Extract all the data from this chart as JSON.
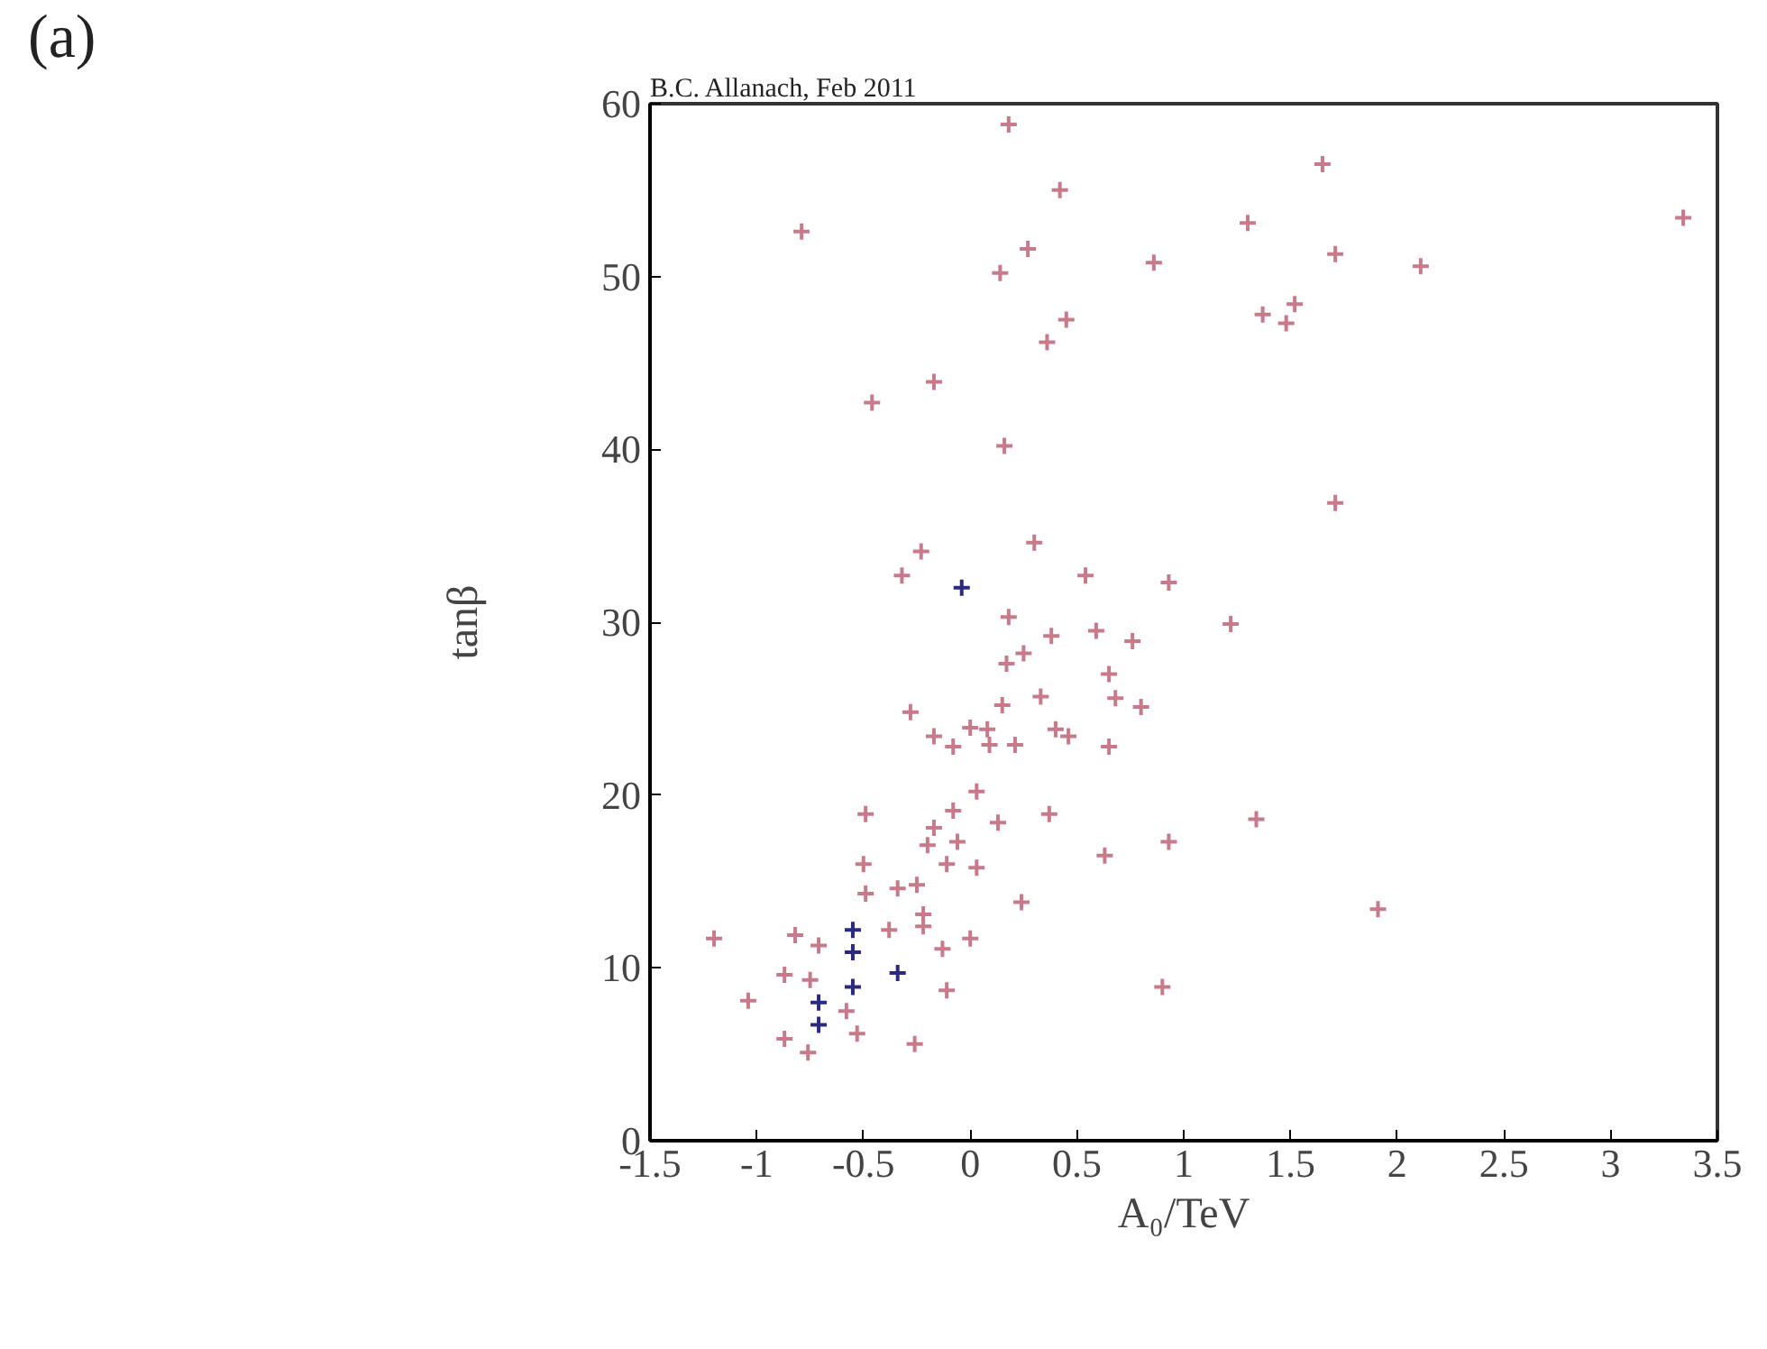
{
  "chart_data": {
    "type": "scatter",
    "xlabel": "A₀/TeV",
    "ylabel": "tanβ",
    "annotations": [
      "(a)",
      "B.C. Allanach, Feb 2011"
    ],
    "xlim": [
      -1.5,
      3.5
    ],
    "ylim": [
      0,
      60
    ],
    "xticks": [
      -1.5,
      -1,
      -0.5,
      0,
      0.5,
      1,
      1.5,
      2,
      2.5,
      3,
      3.5
    ],
    "yticks": [
      0,
      10,
      20,
      30,
      40,
      50,
      60
    ],
    "marker": "cross",
    "grid": false,
    "series": [
      {
        "color": "#c87a8a",
        "x": [
          0.18,
          -0.79,
          0.42,
          0.27,
          0.86,
          0.14,
          0.45,
          0.36,
          -0.17,
          -0.46,
          0.16,
          -0.23,
          0.3,
          -0.32,
          0.54,
          0.93,
          1.65,
          1.3,
          1.71,
          2.11,
          3.34,
          1.52,
          1.37,
          1.48,
          1.71,
          0.18,
          0.38,
          0.59,
          0.76,
          0.17,
          0.25,
          0.65,
          0.15,
          0.33,
          0.68,
          0.8,
          -0.28,
          0.0,
          0.08,
          -0.17,
          -0.08,
          0.09,
          0.21,
          0.4,
          0.46,
          0.65,
          0.03,
          -0.08,
          -0.49,
          0.13,
          0.37,
          -0.17,
          -0.06,
          -0.2,
          0.93,
          0.63,
          -0.11,
          0.03,
          -0.5,
          -0.34,
          -0.25,
          -0.49,
          0.24,
          -0.22,
          -0.22,
          -0.38,
          -0.82,
          -1.2,
          0.0,
          -0.71,
          -0.13,
          -0.87,
          -0.75,
          -0.11,
          0.9,
          -1.04,
          -0.58,
          -0.53,
          -0.87,
          -0.76,
          -0.26,
          1.22,
          1.34,
          1.91
        ],
        "values": [
          58.8,
          52.6,
          55.0,
          51.6,
          50.8,
          50.2,
          47.5,
          46.2,
          43.9,
          42.7,
          40.2,
          34.1,
          34.6,
          32.7,
          32.7,
          32.3,
          56.5,
          53.1,
          51.3,
          50.6,
          53.4,
          48.4,
          47.8,
          47.3,
          36.9,
          30.3,
          29.2,
          29.5,
          28.9,
          27.6,
          28.2,
          27.0,
          25.2,
          25.7,
          25.6,
          25.1,
          24.8,
          23.9,
          23.8,
          23.4,
          22.8,
          22.9,
          22.9,
          23.8,
          23.4,
          22.8,
          20.2,
          19.1,
          18.9,
          18.4,
          18.9,
          18.1,
          17.3,
          17.1,
          17.3,
          16.5,
          16.0,
          15.8,
          16.0,
          14.6,
          14.8,
          14.3,
          13.8,
          13.1,
          12.4,
          12.2,
          11.9,
          11.7,
          11.7,
          11.3,
          11.1,
          9.6,
          9.3,
          8.7,
          8.9,
          8.1,
          7.5,
          6.2,
          5.9,
          5.1,
          5.6,
          29.9,
          18.6,
          13.4
        ]
      },
      {
        "color": "#2a2a80",
        "x": [
          -0.04,
          -0.55,
          -0.55,
          -0.34,
          -0.55,
          -0.71,
          -0.71
        ],
        "values": [
          32.0,
          12.2,
          10.9,
          9.7,
          8.9,
          8.0,
          6.7
        ]
      }
    ]
  }
}
